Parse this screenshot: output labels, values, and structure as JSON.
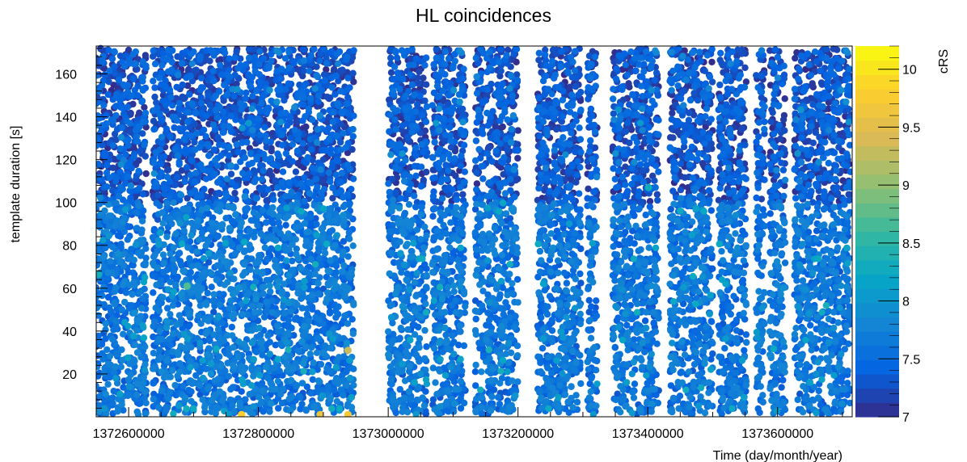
{
  "chart_data": {
    "type": "scatter",
    "title": "HL coincidences",
    "xlabel": "Time (day/month/year)",
    "ylabel": "template duration [s]",
    "zlabel": "cRS",
    "xlim": [
      1372550000,
      1373715000
    ],
    "ylim": [
      0,
      173
    ],
    "zlim": [
      7,
      10.2
    ],
    "x_ticks": [
      1372600000,
      1372800000,
      1373000000,
      1373200000,
      1373400000,
      1373600000
    ],
    "x_tick_labels": [
      "1372600000",
      "1372800000",
      "1373000000",
      "1373200000",
      "1373400000",
      "1373600000"
    ],
    "y_ticks": [
      20,
      40,
      60,
      80,
      100,
      120,
      140,
      160
    ],
    "y_tick_labels": [
      "20",
      "40",
      "60",
      "80",
      "100",
      "120",
      "140",
      "160"
    ],
    "z_ticks": [
      7,
      7.5,
      8,
      8.5,
      9,
      9.5,
      10
    ],
    "z_tick_labels": [
      "7",
      "7.5",
      "8",
      "8.5",
      "9",
      "9.5",
      "10"
    ],
    "grid": false,
    "colormap": "parula",
    "colors": [
      "#352a87",
      "#0363e1",
      "#1485d4",
      "#06a7c6",
      "#38b99e",
      "#92bf73",
      "#d9ba56",
      "#fcce2e",
      "#f9fb0e"
    ],
    "data_segments_x": [
      [
        1372549000,
        1372589000
      ],
      [
        1372589000,
        1372627000
      ],
      [
        1372637000,
        1372681000
      ],
      [
        1372681000,
        1372720000
      ],
      [
        1372721000,
        1372777000
      ],
      [
        1372778000,
        1372839000
      ],
      [
        1372839000,
        1372904000
      ],
      [
        1372904000,
        1372947000
      ],
      [
        1373000000,
        1373016000
      ],
      [
        1373017000,
        1373060000
      ],
      [
        1373068000,
        1373119000
      ],
      [
        1373134000,
        1373148000
      ],
      [
        1373150000,
        1373200000
      ],
      [
        1373230000,
        1373265000
      ],
      [
        1373265000,
        1373297000
      ],
      [
        1373307000,
        1373322000
      ],
      [
        1373346000,
        1373385000
      ],
      [
        1373385000,
        1373417000
      ],
      [
        1373434000,
        1373477000
      ],
      [
        1373477000,
        1373500000
      ],
      [
        1373509000,
        1373552000
      ],
      [
        1373567000,
        1373580000
      ],
      [
        1373588000,
        1373612000
      ],
      [
        1373626000,
        1373670000
      ],
      [
        1373670000,
        1373713000
      ]
    ],
    "notable_points": [
      {
        "x": 1373401000,
        "y": 107,
        "crs": 8.3
      },
      {
        "x": 1372690000,
        "y": 61,
        "crs": 8.7
      },
      {
        "x": 1372774000,
        "y": 1,
        "crs": 9.8
      },
      {
        "x": 1372895000,
        "y": 1,
        "crs": 9.6
      },
      {
        "x": 1372938000,
        "y": 1,
        "crs": 9.7
      },
      {
        "x": 1372938000,
        "y": 31,
        "crs": 9.3
      }
    ]
  }
}
